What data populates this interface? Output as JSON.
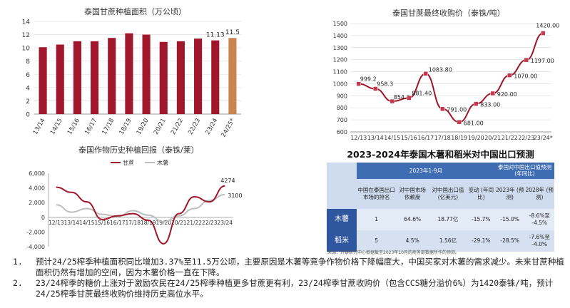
{
  "chart_data": [
    {
      "type": "bar",
      "title": "泰国甘蔗种植面积（万公顷）",
      "categories": [
        "13/14",
        "14/15",
        "15/16",
        "16/17",
        "17/18",
        "18/19",
        "19/20",
        "20/21",
        "21/22",
        "22/23",
        "23/24",
        "24/25*"
      ],
      "values": [
        10.1,
        10.5,
        11.0,
        11.0,
        11.5,
        12.2,
        12.0,
        10.9,
        11.0,
        11.4,
        11.13,
        11.5
      ],
      "data_labels": {
        "10": "11.13",
        "11": "11.5"
      },
      "ylim": [
        0,
        14
      ],
      "yticks": [
        0,
        2,
        4,
        6,
        8,
        10,
        12,
        14
      ],
      "colors": {
        "main": "#a0162a",
        "highlight": "#c98450"
      }
    },
    {
      "type": "line",
      "title": "泰国甘蔗最终收购价（泰铢/吨）",
      "categories": [
        "12/13",
        "13/14",
        "14/15",
        "15/16",
        "16/17",
        "17/18",
        "18/19",
        "19/20",
        "20/21",
        "21/22",
        "22/23",
        "23/24*"
      ],
      "values": [
        999.2,
        958.3,
        854.2,
        881.4,
        1083.8,
        791.0,
        681.0,
        833.0,
        920.0,
        1070.0,
        1197.0,
        1420.0
      ],
      "data_labels": [
        "999.2",
        "958.3",
        "854.2",
        "881.40",
        "1083.80",
        "791.00",
        "681.00",
        "833.00",
        "920.00",
        "1070.00",
        "1197.00",
        "1420.00"
      ],
      "ylim": [
        600,
        1500
      ],
      "yticks": [
        600,
        700,
        800,
        900,
        1000,
        1100,
        1200,
        1300,
        1400,
        1500
      ],
      "colors": {
        "line": "#a0162a",
        "marker": "#c4394f"
      }
    },
    {
      "type": "line",
      "title": "泰国作物历史种植回报（泰铢/莱）",
      "categories": [
        "12/13",
        "13/14",
        "14/15",
        "15/16",
        "16/17",
        "17/18",
        "18/19",
        "19/20",
        "20/21",
        "21/22",
        "22/23",
        "23/24"
      ],
      "series": [
        {
          "name": "甘蔗",
          "values": [
            4100,
            3400,
            2100,
            -300,
            200,
            500,
            -400,
            -3600,
            500,
            2800,
            2100,
            4274
          ],
          "color": "#a0162a"
        },
        {
          "name": "木薯",
          "values": [
            1700,
            700,
            1200,
            400,
            100,
            900,
            300,
            -600,
            200,
            1200,
            2300,
            3100
          ],
          "color": "#bdbdbd"
        }
      ],
      "data_labels": [
        "4274",
        "3100"
      ],
      "ylim": [
        -4000,
        6000
      ],
      "yticks": [
        -4000,
        -2000,
        0,
        2000,
        4000,
        6000
      ],
      "ytick_labels": [
        "-4,000",
        "-2,000",
        "0",
        "2,000",
        "4,000",
        "6,000"
      ],
      "legend": "top"
    },
    {
      "type": "table",
      "title": "2023-2024年泰国木薯和稻米对中国出口预测",
      "group_headers": [
        "2023年1-9月",
        "泰国对中国出口值预测 (年同比)"
      ],
      "columns": [
        "中国在泰国出口市场的排名",
        "对中国市场依赖度",
        "对中国出口值 (亿美元)",
        "变动 (年同比)",
        "2023年 (预测)",
        "2028年 (预测)"
      ],
      "rows": [
        {
          "label": "木薯",
          "cells": [
            "1",
            "64.6%",
            "18.77亿",
            "-15.7%",
            "-15.0%",
            "-8.6%至 -4.5%"
          ]
        },
        {
          "label": "稻米",
          "cells": [
            "5",
            "4.5%",
            "1.56亿",
            "-29.1%",
            "-28.5%",
            "-7.6%至 -4.0%"
          ]
        }
      ],
      "source": "来源：开泰研究中心根据截至2023年10月的商务部数据所作的预测。"
    }
  ],
  "notes": [
    {
      "num": "1.",
      "text": "预计24/25榨季种植面积同比增加3.37%至11.5万公顷，主要原因是木薯等竞争作物价格下降幅度大，中国买家对木薯的需求减少。未来甘蔗种植面积仍然有增加的空间，因为木薯价格一直在下降。"
    },
    {
      "num": "2.",
      "text": "23/24榨季的糖价上涨对于激励农民在24/25榨季种植更多甘蔗更有利，23/24榨季甘蔗收购价（包含CCS糖分溢价6%）为1420泰铢/吨，预计24/25榨季甘蔗最终收购价维持历史高位水平。"
    }
  ]
}
